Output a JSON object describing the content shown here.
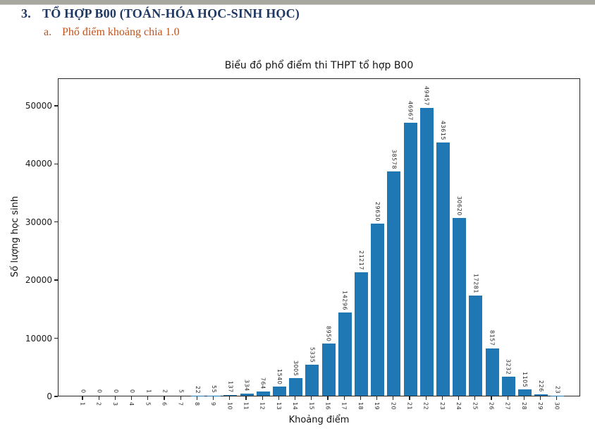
{
  "page": {
    "heading_number": "3.",
    "heading": "TỔ HỢP B00 (TOÁN-HÓA HỌC-SINH HỌC)",
    "subheading_letter": "a.",
    "subheading": "Phổ điểm khoảng chia 1.0",
    "heading_color": "#1f3864",
    "subheading_color": "#c0541c"
  },
  "chart_data": {
    "type": "bar",
    "title": "Biểu đồ phổ điểm thi THPT tổ hợp B00",
    "xlabel": "Khoảng điểm",
    "ylabel": "Số lượng học sinh",
    "categories": [
      "1",
      "2",
      "3",
      "4",
      "5",
      "6",
      "7",
      "8",
      "9",
      "10",
      "11",
      "12",
      "13",
      "14",
      "15",
      "16",
      "17",
      "18",
      "19",
      "20",
      "21",
      "22",
      "23",
      "24",
      "25",
      "26",
      "27",
      "28",
      "29",
      "30"
    ],
    "values": [
      0,
      0,
      0,
      0,
      1,
      2,
      5,
      22,
      55,
      137,
      334,
      764,
      1540,
      3005,
      5335,
      8950,
      14296,
      21217,
      29630,
      38578,
      46967,
      49457,
      43615,
      30620,
      17281,
      8157,
      3232,
      1105,
      226,
      23
    ],
    "yticks": [
      0,
      10000,
      20000,
      30000,
      40000,
      50000
    ],
    "ylim": [
      0,
      54720
    ],
    "bar_color": "#1f77b4",
    "value_labels_rotated": true,
    "xtick_labels_rotated": true,
    "grid": false,
    "legend": "none"
  }
}
